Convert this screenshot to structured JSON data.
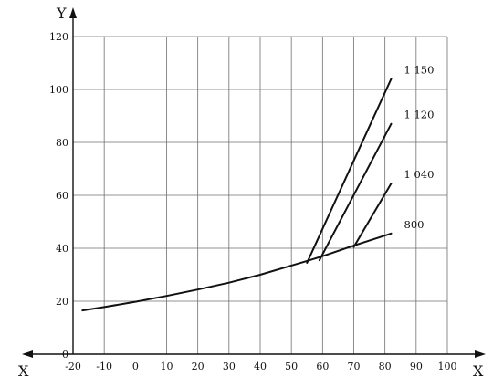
{
  "chart_data": {
    "type": "line",
    "title": "",
    "xlabel": "X",
    "ylabel": "Y",
    "xlim": [
      -20,
      100
    ],
    "ylim": [
      0,
      120
    ],
    "x_ticks": [
      -20,
      -10,
      0,
      10,
      20,
      30,
      40,
      50,
      60,
      70,
      80,
      90,
      100
    ],
    "y_ticks": [
      0,
      20,
      40,
      60,
      80,
      100,
      120
    ],
    "x_tick_labels": [
      "-20",
      "-10",
      "0",
      "10",
      "20",
      "30",
      "40",
      "50",
      "60",
      "70",
      "80",
      "90",
      "100"
    ],
    "y_tick_labels": [
      "0",
      "20",
      "40",
      "60",
      "80",
      "100",
      "120"
    ],
    "grid": true,
    "x_axis_bidirectional": true,
    "series": [
      {
        "name": "800",
        "label": "800",
        "x": [
          -17,
          -10,
          0,
          10,
          20,
          30,
          40,
          50,
          55,
          60,
          70,
          80,
          82
        ],
        "y": [
          16.5,
          17.8,
          19.8,
          22,
          24.4,
          27,
          30,
          33.5,
          35.2,
          37,
          41,
          44.8,
          45.6
        ]
      },
      {
        "name": "1 150",
        "label": "1 150",
        "x": [
          55,
          82
        ],
        "y": [
          34.5,
          104
        ]
      },
      {
        "name": "1 120",
        "label": "1 120",
        "x": [
          59,
          82
        ],
        "y": [
          35.5,
          87
        ]
      },
      {
        "name": "1 040",
        "label": "1 040",
        "x": [
          70,
          82
        ],
        "y": [
          40.5,
          64.5
        ]
      }
    ]
  }
}
